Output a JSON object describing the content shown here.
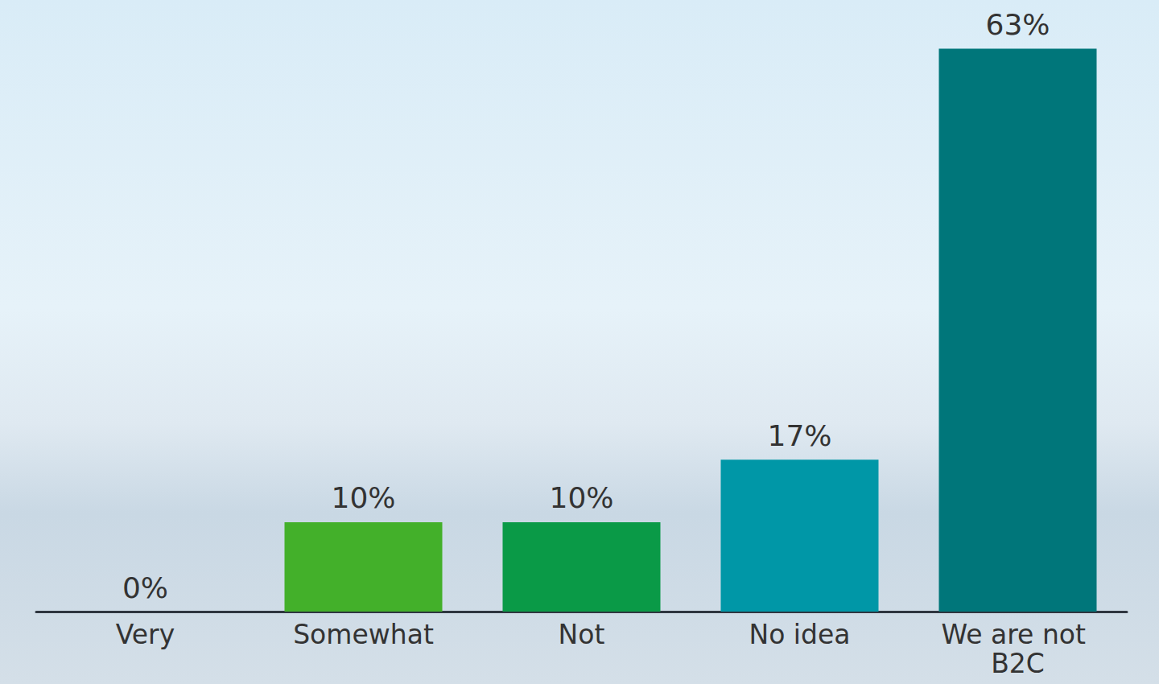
{
  "chart_data": {
    "type": "bar",
    "categories": [
      "Very",
      "Somewhat",
      "Not",
      "No idea",
      "We are not B2C"
    ],
    "values": [
      0,
      10,
      10,
      17,
      63
    ],
    "value_labels": [
      "0%",
      "10%",
      "10%",
      "17%",
      "63%"
    ],
    "colors": [
      "#43b02a",
      "#43b02a",
      "#0a9a47",
      "#0097a7",
      "#00767a"
    ],
    "ylim": [
      0,
      68
    ],
    "grid": false,
    "data_labels": true,
    "tick_labels": "x"
  }
}
